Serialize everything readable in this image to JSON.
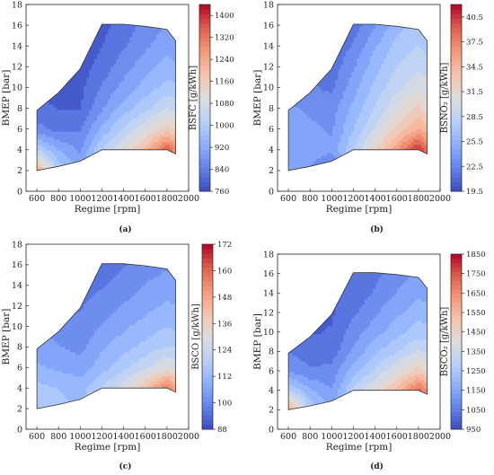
{
  "chart_data": [
    {
      "type": "contour",
      "caption": "(a)",
      "xlabel": "Regime [rpm]",
      "ylabel": "BMEP [bar]",
      "xlim": [
        500,
        2000
      ],
      "ylim": [
        0,
        18
      ],
      "xticks": [
        600,
        800,
        1000,
        1200,
        1400,
        1600,
        1800,
        2000
      ],
      "yticks": [
        0,
        2,
        4,
        6,
        8,
        10,
        12,
        14,
        16,
        18
      ],
      "grid": false,
      "colorbar": {
        "label": "BSFC [g/kWh]",
        "range": [
          760,
          1440
        ],
        "ticks": [
          "760",
          "840",
          "920",
          "1000",
          "1080",
          "1160",
          "1240",
          "1320",
          "1400"
        ],
        "colormap": "coolwarm"
      },
      "boundary": [
        [
          600,
          7.8
        ],
        [
          800,
          9.5
        ],
        [
          1000,
          11.8
        ],
        [
          1200,
          16.1
        ],
        [
          1400,
          16.1
        ],
        [
          1600,
          15.9
        ],
        [
          1800,
          15.6
        ],
        [
          1880,
          14.5
        ],
        [
          1880,
          3.6
        ],
        [
          1800,
          4.0
        ],
        [
          1600,
          4.0
        ],
        [
          1400,
          4.0
        ],
        [
          1200,
          4.0
        ],
        [
          1000,
          2.9
        ],
        [
          800,
          2.4
        ],
        [
          600,
          2.0
        ]
      ],
      "field_grid": {
        "x": [
          600,
          800,
          1000,
          1200,
          1400,
          1600,
          1800,
          1880
        ],
        "y": [
          2,
          4,
          6,
          8,
          10,
          12,
          14,
          16
        ],
        "z": [
          [
            1240,
            1000,
            930,
            1000,
            1080,
            1160,
            1240,
            1320
          ],
          [
            1020,
            930,
            880,
            1020,
            1100,
            1200,
            1360,
            1300
          ],
          [
            860,
            830,
            840,
            940,
            1020,
            1090,
            1160,
            1130
          ],
          [
            820,
            800,
            800,
            880,
            950,
            1000,
            1060,
            1050
          ],
          [
            790,
            780,
            790,
            850,
            900,
            950,
            990,
            980
          ],
          [
            780,
            770,
            780,
            820,
            870,
            910,
            950,
            940
          ],
          [
            780,
            770,
            780,
            800,
            840,
            880,
            910,
            900
          ],
          [
            780,
            770,
            775,
            790,
            820,
            860,
            890,
            880
          ]
        ]
      }
    },
    {
      "type": "contour",
      "caption": "(b)",
      "xlabel": "Regime [rpm]",
      "ylabel": "BMEP [bar]",
      "xlim": [
        500,
        2000
      ],
      "ylim": [
        0,
        18
      ],
      "xticks": [
        600,
        800,
        1000,
        1200,
        1400,
        1600,
        1800,
        2000
      ],
      "yticks": [
        0,
        2,
        4,
        6,
        8,
        10,
        12,
        14,
        16,
        18
      ],
      "grid": false,
      "colorbar": {
        "label": "BSNO₂ [g/kWh]",
        "range": [
          19.5,
          42
        ],
        "ticks": [
          "19.5",
          "22.5",
          "25.5",
          "28.5",
          "31.5",
          "34.5",
          "37.5",
          "40.5"
        ],
        "colormap": "coolwarm"
      },
      "boundary": [
        [
          600,
          7.8
        ],
        [
          800,
          9.5
        ],
        [
          1000,
          11.8
        ],
        [
          1200,
          16.1
        ],
        [
          1400,
          16.1
        ],
        [
          1600,
          15.9
        ],
        [
          1800,
          15.6
        ],
        [
          1880,
          14.5
        ],
        [
          1880,
          3.6
        ],
        [
          1800,
          4.0
        ],
        [
          1600,
          4.0
        ],
        [
          1400,
          4.0
        ],
        [
          1200,
          4.0
        ],
        [
          1000,
          2.9
        ],
        [
          800,
          2.4
        ],
        [
          600,
          2.0
        ]
      ],
      "field_grid": {
        "x": [
          600,
          800,
          1000,
          1200,
          1400,
          1600,
          1800,
          1880
        ],
        "y": [
          2,
          4,
          6,
          8,
          10,
          12,
          14,
          16
        ],
        "z": [
          [
            24.0,
            23.5,
            22.0,
            26.0,
            29.0,
            32.0,
            35.0,
            36.0
          ],
          [
            25.0,
            24.5,
            24.0,
            28.0,
            32.0,
            36.0,
            41.0,
            38.5
          ],
          [
            24.5,
            24.0,
            23.5,
            26.5,
            29.5,
            32.5,
            35.0,
            34.0
          ],
          [
            24.0,
            23.5,
            23.0,
            25.5,
            28.0,
            30.5,
            32.5,
            31.5
          ],
          [
            23.0,
            22.5,
            22.0,
            24.5,
            27.0,
            29.0,
            30.5,
            30.0
          ],
          [
            22.5,
            22.0,
            21.5,
            23.5,
            26.0,
            28.0,
            29.0,
            28.5
          ],
          [
            22.0,
            21.5,
            21.0,
            22.5,
            25.0,
            27.0,
            28.0,
            27.5
          ],
          [
            21.5,
            21.0,
            20.5,
            21.5,
            23.5,
            26.0,
            27.0,
            26.5
          ]
        ]
      }
    },
    {
      "type": "contour",
      "caption": "(c)",
      "xlabel": "Regime [rpm]",
      "ylabel": "BMEP [bar]",
      "xlim": [
        500,
        2000
      ],
      "ylim": [
        0,
        18
      ],
      "xticks": [
        600,
        800,
        1000,
        1200,
        1400,
        1600,
        1800,
        2000
      ],
      "yticks": [
        0,
        2,
        4,
        6,
        8,
        10,
        12,
        14,
        16,
        18
      ],
      "grid": false,
      "colorbar": {
        "label": "BSCO [g/kWh]",
        "range": [
          88,
          172
        ],
        "ticks": [
          "88",
          "100",
          "112",
          "124",
          "136",
          "148",
          "160",
          "172"
        ],
        "colormap": "coolwarm"
      },
      "boundary": [
        [
          600,
          7.8
        ],
        [
          800,
          9.5
        ],
        [
          1000,
          11.8
        ],
        [
          1200,
          16.1
        ],
        [
          1400,
          16.1
        ],
        [
          1600,
          15.9
        ],
        [
          1800,
          15.6
        ],
        [
          1880,
          14.5
        ],
        [
          1880,
          3.6
        ],
        [
          1800,
          4.0
        ],
        [
          1600,
          4.0
        ],
        [
          1400,
          4.0
        ],
        [
          1200,
          4.0
        ],
        [
          1000,
          2.9
        ],
        [
          800,
          2.4
        ],
        [
          600,
          2.0
        ]
      ],
      "field_grid": {
        "x": [
          600,
          800,
          1000,
          1200,
          1400,
          1600,
          1800,
          1880
        ],
        "y": [
          2,
          4,
          6,
          8,
          10,
          12,
          14,
          16
        ],
        "z": [
          [
            118,
            116,
            114,
            120,
            126,
            132,
            138,
            140
          ],
          [
            116,
            114,
            112,
            120,
            128,
            140,
            158,
            148
          ],
          [
            110,
            108,
            106,
            112,
            118,
            124,
            130,
            128
          ],
          [
            106,
            104,
            102,
            108,
            112,
            116,
            120,
            119
          ],
          [
            104,
            102,
            100,
            104,
            108,
            111,
            114,
            113
          ],
          [
            102,
            100,
            98,
            101,
            104,
            107,
            110,
            109
          ],
          [
            100,
            98,
            96,
            98,
            101,
            104,
            106,
            105
          ],
          [
            99,
            97,
            95,
            94,
            98,
            101,
            103,
            102
          ]
        ]
      }
    },
    {
      "type": "contour",
      "caption": "(d)",
      "xlabel": "Regime [rpm]",
      "ylabel": "BMEP [bar]",
      "xlim": [
        500,
        2000
      ],
      "ylim": [
        0,
        18
      ],
      "xticks": [
        600,
        800,
        1000,
        1200,
        1400,
        1600,
        1800,
        2000
      ],
      "yticks": [
        0,
        2,
        4,
        6,
        8,
        10,
        12,
        14,
        16,
        18
      ],
      "grid": false,
      "colorbar": {
        "label": "BSCO₂ [g/kWh]",
        "range": [
          950,
          1850
        ],
        "ticks": [
          "950",
          "1050",
          "1150",
          "1250",
          "1350",
          "1450",
          "1550",
          "1650",
          "1750",
          "1850"
        ],
        "colormap": "coolwarm"
      },
      "boundary": [
        [
          600,
          7.8
        ],
        [
          800,
          9.5
        ],
        [
          1000,
          11.8
        ],
        [
          1200,
          16.1
        ],
        [
          1400,
          16.1
        ],
        [
          1600,
          15.9
        ],
        [
          1800,
          15.6
        ],
        [
          1880,
          14.5
        ],
        [
          1880,
          3.6
        ],
        [
          1800,
          4.0
        ],
        [
          1600,
          4.0
        ],
        [
          1400,
          4.0
        ],
        [
          1200,
          4.0
        ],
        [
          1000,
          2.9
        ],
        [
          800,
          2.4
        ],
        [
          600,
          2.0
        ]
      ],
      "field_grid": {
        "x": [
          600,
          800,
          1000,
          1200,
          1400,
          1600,
          1800,
          1880
        ],
        "y": [
          2,
          4,
          6,
          8,
          10,
          12,
          14,
          16
        ],
        "z": [
          [
            1600,
            1280,
            1180,
            1280,
            1380,
            1480,
            1580,
            1650
          ],
          [
            1300,
            1180,
            1120,
            1300,
            1410,
            1530,
            1720,
            1640
          ],
          [
            1110,
            1070,
            1080,
            1200,
            1300,
            1390,
            1480,
            1440
          ],
          [
            1060,
            1030,
            1030,
            1130,
            1220,
            1280,
            1350,
            1330
          ],
          [
            1020,
            1000,
            1010,
            1090,
            1150,
            1210,
            1260,
            1250
          ],
          [
            1000,
            990,
            1000,
            1050,
            1110,
            1160,
            1210,
            1200
          ],
          [
            995,
            985,
            995,
            1020,
            1070,
            1120,
            1160,
            1150
          ],
          [
            995,
            985,
            990,
            1010,
            1045,
            1095,
            1130,
            1120
          ]
        ]
      }
    }
  ]
}
